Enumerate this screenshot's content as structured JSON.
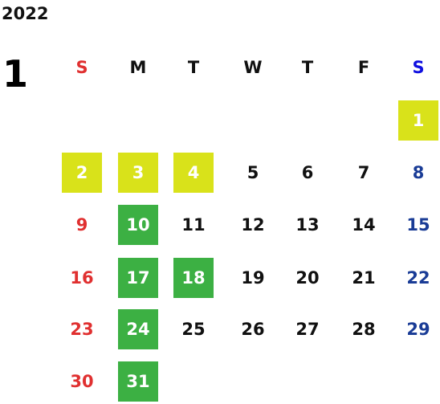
{
  "calendar": {
    "year": "2022",
    "month": "1",
    "weekdays": [
      "S",
      "M",
      "T",
      "W",
      "T",
      "F",
      "S"
    ],
    "colors": {
      "sunday": "#e03030",
      "saturday": "#1a3c96",
      "saturday_header": "#1010e0",
      "highlight_yellow": "#d9e21a",
      "highlight_green": "#3cb043",
      "default": "#111111"
    },
    "weeks": [
      [
        {
          "day": "",
          "highlight": ""
        },
        {
          "day": "",
          "highlight": ""
        },
        {
          "day": "",
          "highlight": ""
        },
        {
          "day": "",
          "highlight": ""
        },
        {
          "day": "",
          "highlight": ""
        },
        {
          "day": "",
          "highlight": ""
        },
        {
          "day": "1",
          "highlight": "yellow"
        }
      ],
      [
        {
          "day": "2",
          "highlight": "yellow"
        },
        {
          "day": "3",
          "highlight": "yellow"
        },
        {
          "day": "4",
          "highlight": "yellow"
        },
        {
          "day": "5",
          "highlight": ""
        },
        {
          "day": "6",
          "highlight": ""
        },
        {
          "day": "7",
          "highlight": ""
        },
        {
          "day": "8",
          "highlight": ""
        }
      ],
      [
        {
          "day": "9",
          "highlight": ""
        },
        {
          "day": "10",
          "highlight": "green"
        },
        {
          "day": "11",
          "highlight": ""
        },
        {
          "day": "12",
          "highlight": ""
        },
        {
          "day": "13",
          "highlight": ""
        },
        {
          "day": "14",
          "highlight": ""
        },
        {
          "day": "15",
          "highlight": ""
        }
      ],
      [
        {
          "day": "16",
          "highlight": ""
        },
        {
          "day": "17",
          "highlight": "green"
        },
        {
          "day": "18",
          "highlight": "green"
        },
        {
          "day": "19",
          "highlight": ""
        },
        {
          "day": "20",
          "highlight": ""
        },
        {
          "day": "21",
          "highlight": ""
        },
        {
          "day": "22",
          "highlight": ""
        }
      ],
      [
        {
          "day": "23",
          "highlight": ""
        },
        {
          "day": "24",
          "highlight": "green"
        },
        {
          "day": "25",
          "highlight": ""
        },
        {
          "day": "26",
          "highlight": ""
        },
        {
          "day": "27",
          "highlight": ""
        },
        {
          "day": "28",
          "highlight": ""
        },
        {
          "day": "29",
          "highlight": ""
        }
      ],
      [
        {
          "day": "30",
          "highlight": ""
        },
        {
          "day": "31",
          "highlight": "green"
        },
        {
          "day": "",
          "highlight": ""
        },
        {
          "day": "",
          "highlight": ""
        },
        {
          "day": "",
          "highlight": ""
        },
        {
          "day": "",
          "highlight": ""
        },
        {
          "day": "",
          "highlight": ""
        }
      ]
    ]
  }
}
